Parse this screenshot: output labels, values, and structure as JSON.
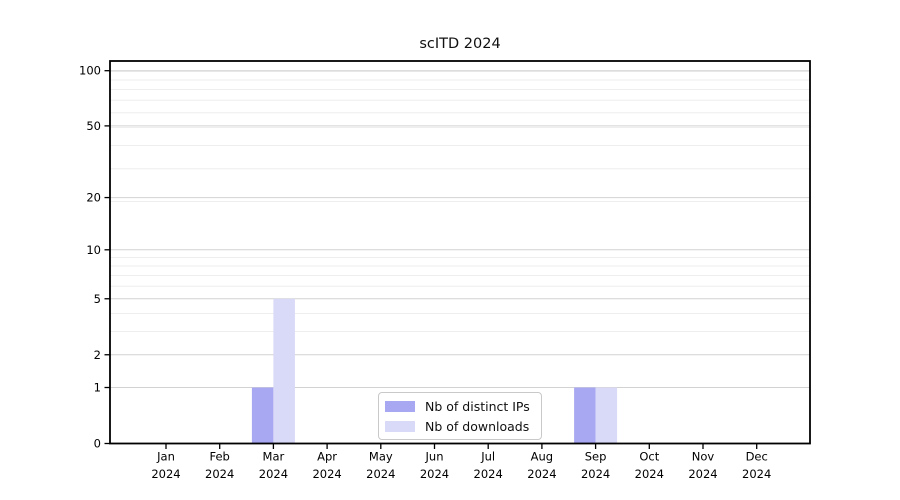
{
  "chart_data": {
    "type": "bar",
    "title": "scITD 2024",
    "categories": [
      "Jan 2024",
      "Feb 2024",
      "Mar 2024",
      "Apr 2024",
      "May 2024",
      "Jun 2024",
      "Jul 2024",
      "Aug 2024",
      "Sep 2024",
      "Oct 2024",
      "Nov 2024",
      "Dec 2024"
    ],
    "series": [
      {
        "name": "Nb of distinct IPs",
        "color": "#a8a8f2",
        "values": [
          0,
          0,
          1,
          0,
          0,
          0,
          0,
          0,
          1,
          0,
          0,
          0
        ]
      },
      {
        "name": "Nb of downloads",
        "color": "#d9d9f8",
        "values": [
          0,
          0,
          5,
          0,
          0,
          0,
          0,
          0,
          1,
          0,
          0,
          0
        ]
      }
    ],
    "y_axis": {
      "scale": "log1p",
      "ticks": [
        0,
        1,
        2,
        5,
        10,
        20,
        50,
        100
      ],
      "minor_gridlines": [
        3,
        4,
        6,
        7,
        8,
        9,
        19,
        29,
        39,
        49,
        59,
        69,
        79,
        89,
        99
      ],
      "max_value": 112
    },
    "legend_position": "lower center",
    "grid": true,
    "colors": {
      "axis": "#000000",
      "grid_major": "#d2d2d2",
      "grid_minor": "#eeeeee",
      "tick_label": "#000000"
    }
  }
}
